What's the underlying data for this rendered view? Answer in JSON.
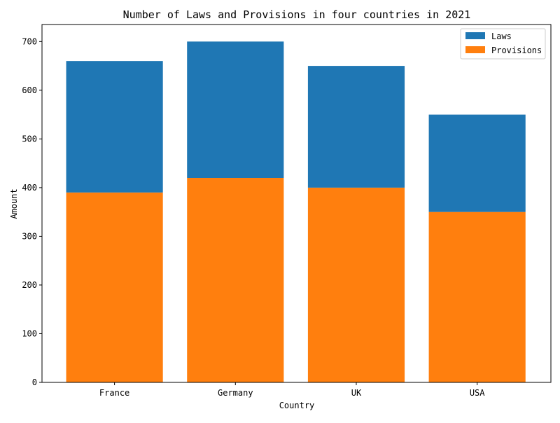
{
  "chart_data": {
    "type": "bar",
    "stacked": true,
    "title": "Number of Laws and Provisions in four countries in 2021",
    "xlabel": "Country",
    "ylabel": "Amount",
    "categories": [
      "France",
      "Germany",
      "UK",
      "USA"
    ],
    "ylim": [
      0,
      735
    ],
    "yticks": [
      0,
      100,
      200,
      300,
      400,
      500,
      600,
      700
    ],
    "stack_order": [
      "Provisions",
      "Laws"
    ],
    "series": [
      {
        "name": "Laws",
        "values": [
          270,
          280,
          250,
          200
        ],
        "color": "#1f77b4"
      },
      {
        "name": "Provisions",
        "values": [
          390,
          420,
          400,
          350
        ],
        "color": "#ff7f0e"
      }
    ],
    "legend_position": "top-right",
    "grid": false
  }
}
